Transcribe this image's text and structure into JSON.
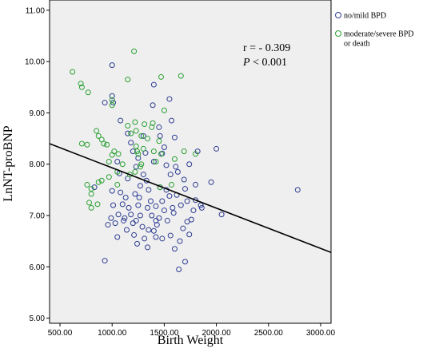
{
  "chart_data": {
    "type": "scatter",
    "xlabel": "Birth Weight",
    "ylabel": "LnNT-proBNP",
    "xlim": [
      400,
      3100
    ],
    "ylim": [
      4.9,
      11.2
    ],
    "x_ticks": [
      500,
      1000,
      1500,
      2000,
      2500,
      3000
    ],
    "x_tick_labels": [
      "500.00",
      "1000.00",
      "1500.00",
      "2000.00",
      "2500.00",
      "3000.00"
    ],
    "y_ticks": [
      5,
      6,
      7,
      8,
      9,
      10,
      11
    ],
    "y_tick_labels": [
      "5.00",
      "6.00",
      "7.00",
      "8.00",
      "9.00",
      "10.00",
      "11.00"
    ],
    "grid": false,
    "background": "#efefef",
    "legend_placement": "right",
    "annotation": {
      "r_text": "r = - 0.309",
      "p_symbol": "P",
      "p_text": " < 0.001"
    },
    "fit_line": {
      "x": [
        400,
        3100
      ],
      "y": [
        8.4,
        6.28
      ],
      "color": "#000000"
    },
    "series": [
      {
        "name": "no/mild BPD",
        "color": "#2e3d93",
        "points": [
          [
            1000,
            9.93
          ],
          [
            1000,
            9.33
          ],
          [
            1010,
            9.2
          ],
          [
            930,
            9.2
          ],
          [
            1080,
            8.85
          ],
          [
            1150,
            8.6
          ],
          [
            1180,
            8.42
          ],
          [
            1250,
            8.12
          ],
          [
            1320,
            8.22
          ],
          [
            1300,
            7.8
          ],
          [
            1400,
            9.55
          ],
          [
            1390,
            9.15
          ],
          [
            1450,
            8.72
          ],
          [
            1460,
            8.55
          ],
          [
            1550,
            9.27
          ],
          [
            1570,
            8.85
          ],
          [
            1600,
            8.52
          ],
          [
            1500,
            8.33
          ],
          [
            1480,
            8.21
          ],
          [
            1520,
            7.98
          ],
          [
            1610,
            7.95
          ],
          [
            1690,
            7.7
          ],
          [
            1720,
            7.28
          ],
          [
            1740,
            8.0
          ],
          [
            1800,
            7.6
          ],
          [
            1820,
            8.25
          ],
          [
            1850,
            7.2
          ],
          [
            1800,
            7.3
          ],
          [
            1780,
            7.1
          ],
          [
            2000,
            8.3
          ],
          [
            1950,
            7.65
          ],
          [
            2050,
            7.02
          ],
          [
            1760,
            6.92
          ],
          [
            1740,
            6.63
          ],
          [
            1700,
            6.1
          ],
          [
            1650,
            6.5
          ],
          [
            1640,
            5.95
          ],
          [
            1600,
            6.35
          ],
          [
            1560,
            6.61
          ],
          [
            1530,
            6.9
          ],
          [
            1500,
            7.1
          ],
          [
            1480,
            7.28
          ],
          [
            1450,
            6.95
          ],
          [
            1430,
            6.82
          ],
          [
            1420,
            6.58
          ],
          [
            1400,
            6.7
          ],
          [
            1380,
            7.0
          ],
          [
            1350,
            6.72
          ],
          [
            1340,
            6.38
          ],
          [
            1310,
            6.55
          ],
          [
            1290,
            6.78
          ],
          [
            1270,
            7.0
          ],
          [
            1250,
            7.2
          ],
          [
            1230,
            6.9
          ],
          [
            1210,
            6.62
          ],
          [
            1200,
            6.85
          ],
          [
            1180,
            7.02
          ],
          [
            1160,
            7.15
          ],
          [
            1140,
            6.72
          ],
          [
            1120,
            6.95
          ],
          [
            1100,
            7.22
          ],
          [
            1080,
            7.45
          ],
          [
            1060,
            7.02
          ],
          [
            1050,
            6.58
          ],
          [
            1030,
            6.85
          ],
          [
            1010,
            7.2
          ],
          [
            1000,
            7.48
          ],
          [
            990,
            6.95
          ],
          [
            960,
            6.82
          ],
          [
            930,
            6.12
          ],
          [
            1070,
            7.82
          ],
          [
            1150,
            7.72
          ],
          [
            1230,
            7.95
          ],
          [
            1270,
            7.58
          ],
          [
            1330,
            7.68
          ],
          [
            1350,
            7.5
          ],
          [
            1370,
            7.28
          ],
          [
            1420,
            7.18
          ],
          [
            1550,
            7.38
          ],
          [
            1580,
            7.15
          ],
          [
            1620,
            7.4
          ],
          [
            1660,
            7.2
          ],
          [
            1700,
            7.52
          ],
          [
            1720,
            6.88
          ],
          [
            1520,
            7.5
          ],
          [
            1460,
            7.55
          ],
          [
            1260,
            7.35
          ],
          [
            1220,
            7.42
          ],
          [
            1300,
            8.55
          ],
          [
            1200,
            8.25
          ],
          [
            1050,
            8.05
          ],
          [
            1130,
            7.35
          ],
          [
            1590,
            7.05
          ],
          [
            1680,
            6.75
          ],
          [
            1560,
            7.8
          ],
          [
            1240,
            6.45
          ],
          [
            1420,
            6.9
          ],
          [
            1340,
            7.15
          ],
          [
            1480,
            6.55
          ],
          [
            1860,
            7.15
          ],
          [
            2780,
            7.5
          ],
          [
            830,
            7.55
          ],
          [
            1110,
            6.9
          ],
          [
            1400,
            8.05
          ],
          [
            1630,
            7.85
          ]
        ]
      },
      {
        "name": "moderate/severe BPD\nor death",
        "color": "#2aa033",
        "points": [
          [
            620,
            9.8
          ],
          [
            700,
            9.57
          ],
          [
            710,
            9.5
          ],
          [
            770,
            9.4
          ],
          [
            1000,
            9.25
          ],
          [
            1000,
            9.15
          ],
          [
            1150,
            9.65
          ],
          [
            1210,
            10.2
          ],
          [
            1470,
            9.7
          ],
          [
            1660,
            9.72
          ],
          [
            1390,
            8.8
          ],
          [
            1380,
            8.72
          ],
          [
            1310,
            8.78
          ],
          [
            1220,
            8.82
          ],
          [
            1230,
            8.65
          ],
          [
            1150,
            8.75
          ],
          [
            1180,
            8.6
          ],
          [
            1280,
            8.55
          ],
          [
            1340,
            8.5
          ],
          [
            1450,
            8.45
          ],
          [
            1500,
            9.05
          ],
          [
            850,
            8.65
          ],
          [
            870,
            8.55
          ],
          [
            900,
            8.48
          ],
          [
            920,
            8.4
          ],
          [
            950,
            8.38
          ],
          [
            1020,
            8.25
          ],
          [
            1060,
            8.2
          ],
          [
            1000,
            8.18
          ],
          [
            970,
            8.05
          ],
          [
            710,
            8.4
          ],
          [
            760,
            8.38
          ],
          [
            1300,
            8.3
          ],
          [
            1230,
            8.35
          ],
          [
            1240,
            8.25
          ],
          [
            1250,
            8.2
          ],
          [
            1470,
            8.2
          ],
          [
            1690,
            8.25
          ],
          [
            1800,
            8.2
          ],
          [
            1270,
            7.95
          ],
          [
            1220,
            7.85
          ],
          [
            1050,
            7.85
          ],
          [
            970,
            7.75
          ],
          [
            900,
            7.68
          ],
          [
            870,
            7.65
          ],
          [
            760,
            7.6
          ],
          [
            800,
            7.42
          ],
          [
            860,
            7.22
          ],
          [
            780,
            7.25
          ],
          [
            800,
            7.15
          ],
          [
            1050,
            7.6
          ],
          [
            1400,
            8.25
          ],
          [
            1170,
            7.8
          ],
          [
            1460,
            7.55
          ],
          [
            1570,
            7.6
          ],
          [
            1600,
            8.1
          ],
          [
            1420,
            8.05
          ],
          [
            1280,
            8.0
          ],
          [
            800,
            7.52
          ],
          [
            1100,
            8.0
          ]
        ]
      }
    ]
  }
}
